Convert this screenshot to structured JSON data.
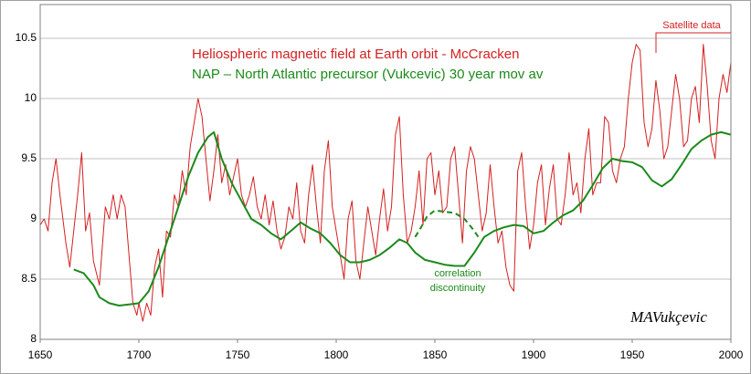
{
  "chart_data": {
    "type": "line",
    "annotations": [
      "Satellite data",
      "correlation",
      "discontinuity",
      "MAVukçevic"
    ],
    "xlim": [
      1650,
      2000
    ],
    "xticks": [
      1650,
      1700,
      1750,
      1800,
      1850,
      1900,
      1950,
      2000
    ],
    "ylim": [
      8,
      10.78
    ],
    "yticks": [
      8,
      {
        "value": 8.5,
        "label": "8.5"
      },
      9,
      {
        "value": 9.5,
        "label": "9.5"
      },
      10,
      {
        "value": 10.5,
        "label": "10.5"
      }
    ],
    "grid": true,
    "series": [
      {
        "name": "Heliospheric magnetic  field at Earth orbit - McCracken",
        "color": "#d42020",
        "x": [
          1650,
          1652,
          1654,
          1656,
          1658,
          1660,
          1663,
          1665,
          1667,
          1669,
          1671,
          1673,
          1675,
          1677,
          1680,
          1683,
          1685,
          1687,
          1689,
          1691,
          1693,
          1695,
          1697,
          1699,
          1700,
          1702,
          1704,
          1706,
          1708,
          1710,
          1712,
          1714,
          1716,
          1718,
          1720,
          1722,
          1724,
          1726,
          1728,
          1730,
          1732,
          1734,
          1736,
          1738,
          1740,
          1742,
          1744,
          1746,
          1748,
          1750,
          1752,
          1754,
          1756,
          1758,
          1760,
          1762,
          1764,
          1766,
          1768,
          1770,
          1772,
          1774,
          1776,
          1778,
          1780,
          1782,
          1784,
          1786,
          1788,
          1790,
          1792,
          1794,
          1796,
          1798,
          1800,
          1802,
          1804,
          1806,
          1808,
          1810,
          1812,
          1814,
          1816,
          1818,
          1820,
          1822,
          1824,
          1826,
          1828,
          1830,
          1832,
          1834,
          1836,
          1838,
          1840,
          1842,
          1844,
          1846,
          1848,
          1850,
          1852,
          1854,
          1856,
          1858,
          1860,
          1862,
          1864,
          1866,
          1868,
          1870,
          1872,
          1874,
          1876,
          1878,
          1880,
          1882,
          1884,
          1886,
          1888,
          1890,
          1892,
          1894,
          1896,
          1898,
          1900,
          1902,
          1904,
          1906,
          1908,
          1910,
          1912,
          1914,
          1916,
          1918,
          1920,
          1922,
          1924,
          1926,
          1928,
          1930,
          1932,
          1934,
          1936,
          1938,
          1940,
          1942,
          1944,
          1946,
          1948,
          1950,
          1952,
          1954,
          1956,
          1958,
          1960,
          1962,
          1964,
          1966,
          1968,
          1970,
          1972,
          1974,
          1976,
          1978,
          1980,
          1982,
          1984,
          1986,
          1988,
          1990,
          1992,
          1994,
          1996,
          1998,
          2000
        ],
        "values": [
          8.95,
          9.0,
          8.9,
          9.3,
          9.5,
          9.2,
          8.8,
          8.6,
          8.9,
          9.2,
          9.55,
          8.9,
          9.05,
          8.65,
          8.45,
          9.1,
          9.0,
          9.2,
          9.0,
          9.2,
          9.1,
          8.7,
          8.3,
          8.2,
          8.3,
          8.15,
          8.3,
          8.2,
          8.6,
          8.75,
          8.35,
          8.9,
          8.85,
          9.2,
          9.1,
          9.4,
          9.2,
          9.6,
          9.8,
          10.0,
          9.85,
          9.5,
          9.15,
          9.4,
          9.7,
          9.3,
          9.45,
          9.2,
          9.35,
          9.5,
          9.2,
          9.1,
          9.2,
          9.35,
          9.1,
          9.0,
          9.2,
          8.95,
          9.15,
          8.9,
          8.75,
          8.85,
          9.1,
          9.0,
          9.3,
          8.9,
          8.8,
          9.2,
          9.45,
          9.1,
          8.8,
          9.4,
          9.65,
          9.1,
          8.9,
          8.7,
          8.5,
          9.0,
          9.15,
          8.65,
          8.5,
          8.8,
          9.1,
          8.9,
          8.7,
          9.0,
          9.25,
          8.9,
          9.1,
          9.7,
          9.85,
          9.2,
          8.8,
          8.9,
          9.1,
          9.4,
          8.95,
          9.5,
          9.55,
          9.2,
          9.4,
          9.05,
          9.1,
          9.5,
          9.6,
          9.2,
          8.8,
          9.4,
          9.6,
          9.5,
          9.2,
          8.9,
          9.05,
          9.45,
          9.1,
          8.8,
          8.9,
          8.6,
          8.45,
          8.4,
          9.4,
          9.55,
          9.1,
          8.75,
          8.95,
          9.3,
          9.45,
          8.95,
          9.25,
          9.45,
          9.0,
          8.95,
          9.2,
          9.55,
          9.2,
          9.3,
          9.05,
          9.5,
          9.75,
          9.2,
          9.3,
          9.3,
          9.85,
          9.8,
          9.4,
          9.3,
          9.5,
          9.6,
          10.0,
          10.3,
          10.45,
          10.4,
          9.8,
          9.6,
          9.75,
          10.15,
          9.9,
          9.5,
          9.6,
          9.9,
          10.2,
          10.0,
          9.6,
          9.65,
          10.0,
          10.1,
          9.8,
          10.45,
          10.1,
          9.65,
          9.5,
          10.0,
          10.2,
          10.05,
          10.3
        ]
      },
      {
        "name": "NAP – North Atlantic precursor (Vukcevic) 30 year mov av",
        "color": "#1a8a1a",
        "x": [
          1667,
          1672,
          1677,
          1680,
          1685,
          1690,
          1695,
          1700,
          1705,
          1710,
          1715,
          1720,
          1725,
          1730,
          1735,
          1738,
          1742,
          1747,
          1752,
          1757,
          1762,
          1767,
          1772,
          1777,
          1782,
          1787,
          1792,
          1797,
          1802,
          1807,
          1812,
          1817,
          1822,
          1827,
          1832,
          1836,
          1840,
          1845,
          1850,
          1855,
          1860,
          1865,
          1870,
          1875,
          1880,
          1885,
          1890,
          1895,
          1900,
          1905,
          1910,
          1915,
          1920,
          1925,
          1930,
          1935,
          1940,
          1945,
          1950,
          1955,
          1960,
          1965,
          1970,
          1975,
          1980,
          1985,
          1990,
          1995,
          2000
        ],
        "values": [
          8.58,
          8.55,
          8.45,
          8.35,
          8.3,
          8.28,
          8.29,
          8.3,
          8.4,
          8.6,
          8.85,
          9.1,
          9.35,
          9.55,
          9.68,
          9.72,
          9.5,
          9.3,
          9.15,
          9.0,
          8.95,
          8.88,
          8.83,
          8.9,
          8.97,
          8.92,
          8.88,
          8.8,
          8.7,
          8.64,
          8.64,
          8.66,
          8.7,
          8.76,
          8.83,
          8.8,
          8.72,
          8.66,
          8.64,
          8.62,
          8.61,
          8.61,
          8.72,
          8.85,
          8.9,
          8.93,
          8.95,
          8.94,
          8.88,
          8.9,
          8.97,
          9.03,
          9.07,
          9.15,
          9.28,
          9.42,
          9.5,
          9.48,
          9.47,
          9.43,
          9.32,
          9.27,
          9.33,
          9.45,
          9.58,
          9.65,
          9.7,
          9.72,
          9.7
        ]
      },
      {
        "color": "#1a8a1a",
        "dashed": true,
        "x": [
          1840,
          1843,
          1846,
          1850,
          1855,
          1860,
          1865,
          1870,
          1872
        ],
        "values": [
          8.85,
          8.93,
          9.02,
          9.07,
          9.06,
          9.05,
          9.0,
          8.9,
          8.85
        ]
      }
    ]
  }
}
